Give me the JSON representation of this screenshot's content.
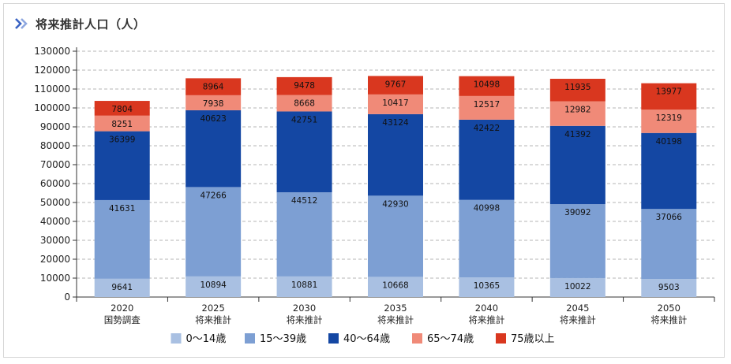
{
  "title": "将来推計人口（人）",
  "icon": "double-chevron-right-icon",
  "chart_data": {
    "type": "bar",
    "stacked": true,
    "title": "将来推計人口（人）",
    "categories": [
      {
        "year": "2020",
        "label": "国勢調査"
      },
      {
        "year": "2025",
        "label": "将来推計"
      },
      {
        "year": "2030",
        "label": "将来推計"
      },
      {
        "year": "2035",
        "label": "将来推計"
      },
      {
        "year": "2040",
        "label": "将来推計"
      },
      {
        "year": "2045",
        "label": "将来推計"
      },
      {
        "year": "2050",
        "label": "将来推計"
      }
    ],
    "series": [
      {
        "name": "0～14歳",
        "color": "#a9c0e2",
        "values": [
          9641,
          10894,
          10881,
          10668,
          10365,
          10022,
          9503
        ]
      },
      {
        "name": "15～39歳",
        "color": "#7d9fd3",
        "values": [
          41631,
          47266,
          44512,
          42930,
          40998,
          39092,
          37066
        ]
      },
      {
        "name": "40～64歳",
        "color": "#1447a3",
        "values": [
          36399,
          40623,
          42751,
          43124,
          42422,
          41392,
          40198
        ]
      },
      {
        "name": "65～74歳",
        "color": "#f08a78",
        "values": [
          8251,
          7938,
          8668,
          10417,
          12517,
          12982,
          12319
        ]
      },
      {
        "name": "75歳以上",
        "color": "#d9371f",
        "values": [
          7804,
          8964,
          9478,
          9767,
          10498,
          11935,
          13977
        ]
      }
    ],
    "ylim": [
      0,
      130000
    ],
    "ytick_step": 10000,
    "grid": "horizontal dashed",
    "legend": "bottom"
  }
}
